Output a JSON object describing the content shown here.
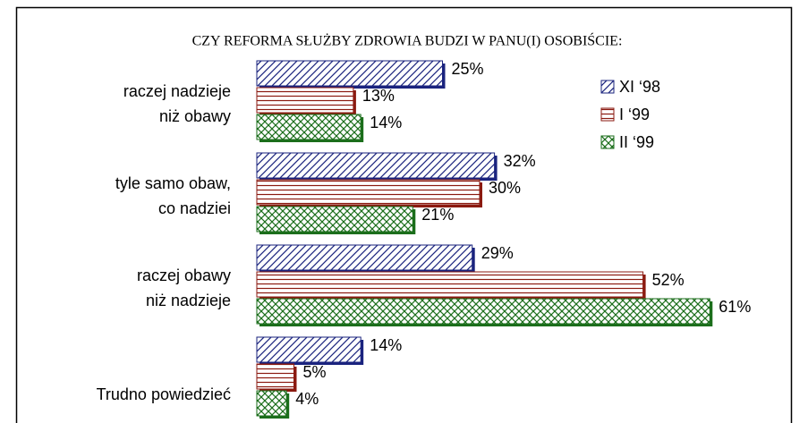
{
  "chart_data": {
    "type": "bar",
    "orientation": "horizontal",
    "title": "CZY REFORMA SŁUŻBY ZDROWIA BUDZI W PANU(I) OSOBIŚCIE:",
    "categories": [
      [
        "raczej nadzieje",
        "niż obawy"
      ],
      [
        "tyle samo obaw,",
        "co nadziei"
      ],
      [
        "raczej obawy",
        "niż nadzieje"
      ],
      [
        "Trudno powiedzieć"
      ]
    ],
    "series": [
      {
        "name": "XI ‘98",
        "color": "#1a237e",
        "pattern": "diagonal",
        "values": [
          25,
          32,
          29,
          14
        ],
        "value_labels": [
          "25%",
          "32%",
          "29%",
          "14%"
        ]
      },
      {
        "name": "I ‘99",
        "color": "#8b1a10",
        "pattern": "horizontal",
        "values": [
          13,
          30,
          52,
          5
        ],
        "value_labels": [
          "13%",
          "30%",
          "52%",
          "5%"
        ]
      },
      {
        "name": "II ‘99",
        "color": "#1b6e1b",
        "pattern": "crosshatch",
        "values": [
          14,
          21,
          61,
          4
        ],
        "value_labels": [
          "14%",
          "21%",
          "61%",
          "4%"
        ]
      }
    ],
    "legend": "top-right"
  }
}
